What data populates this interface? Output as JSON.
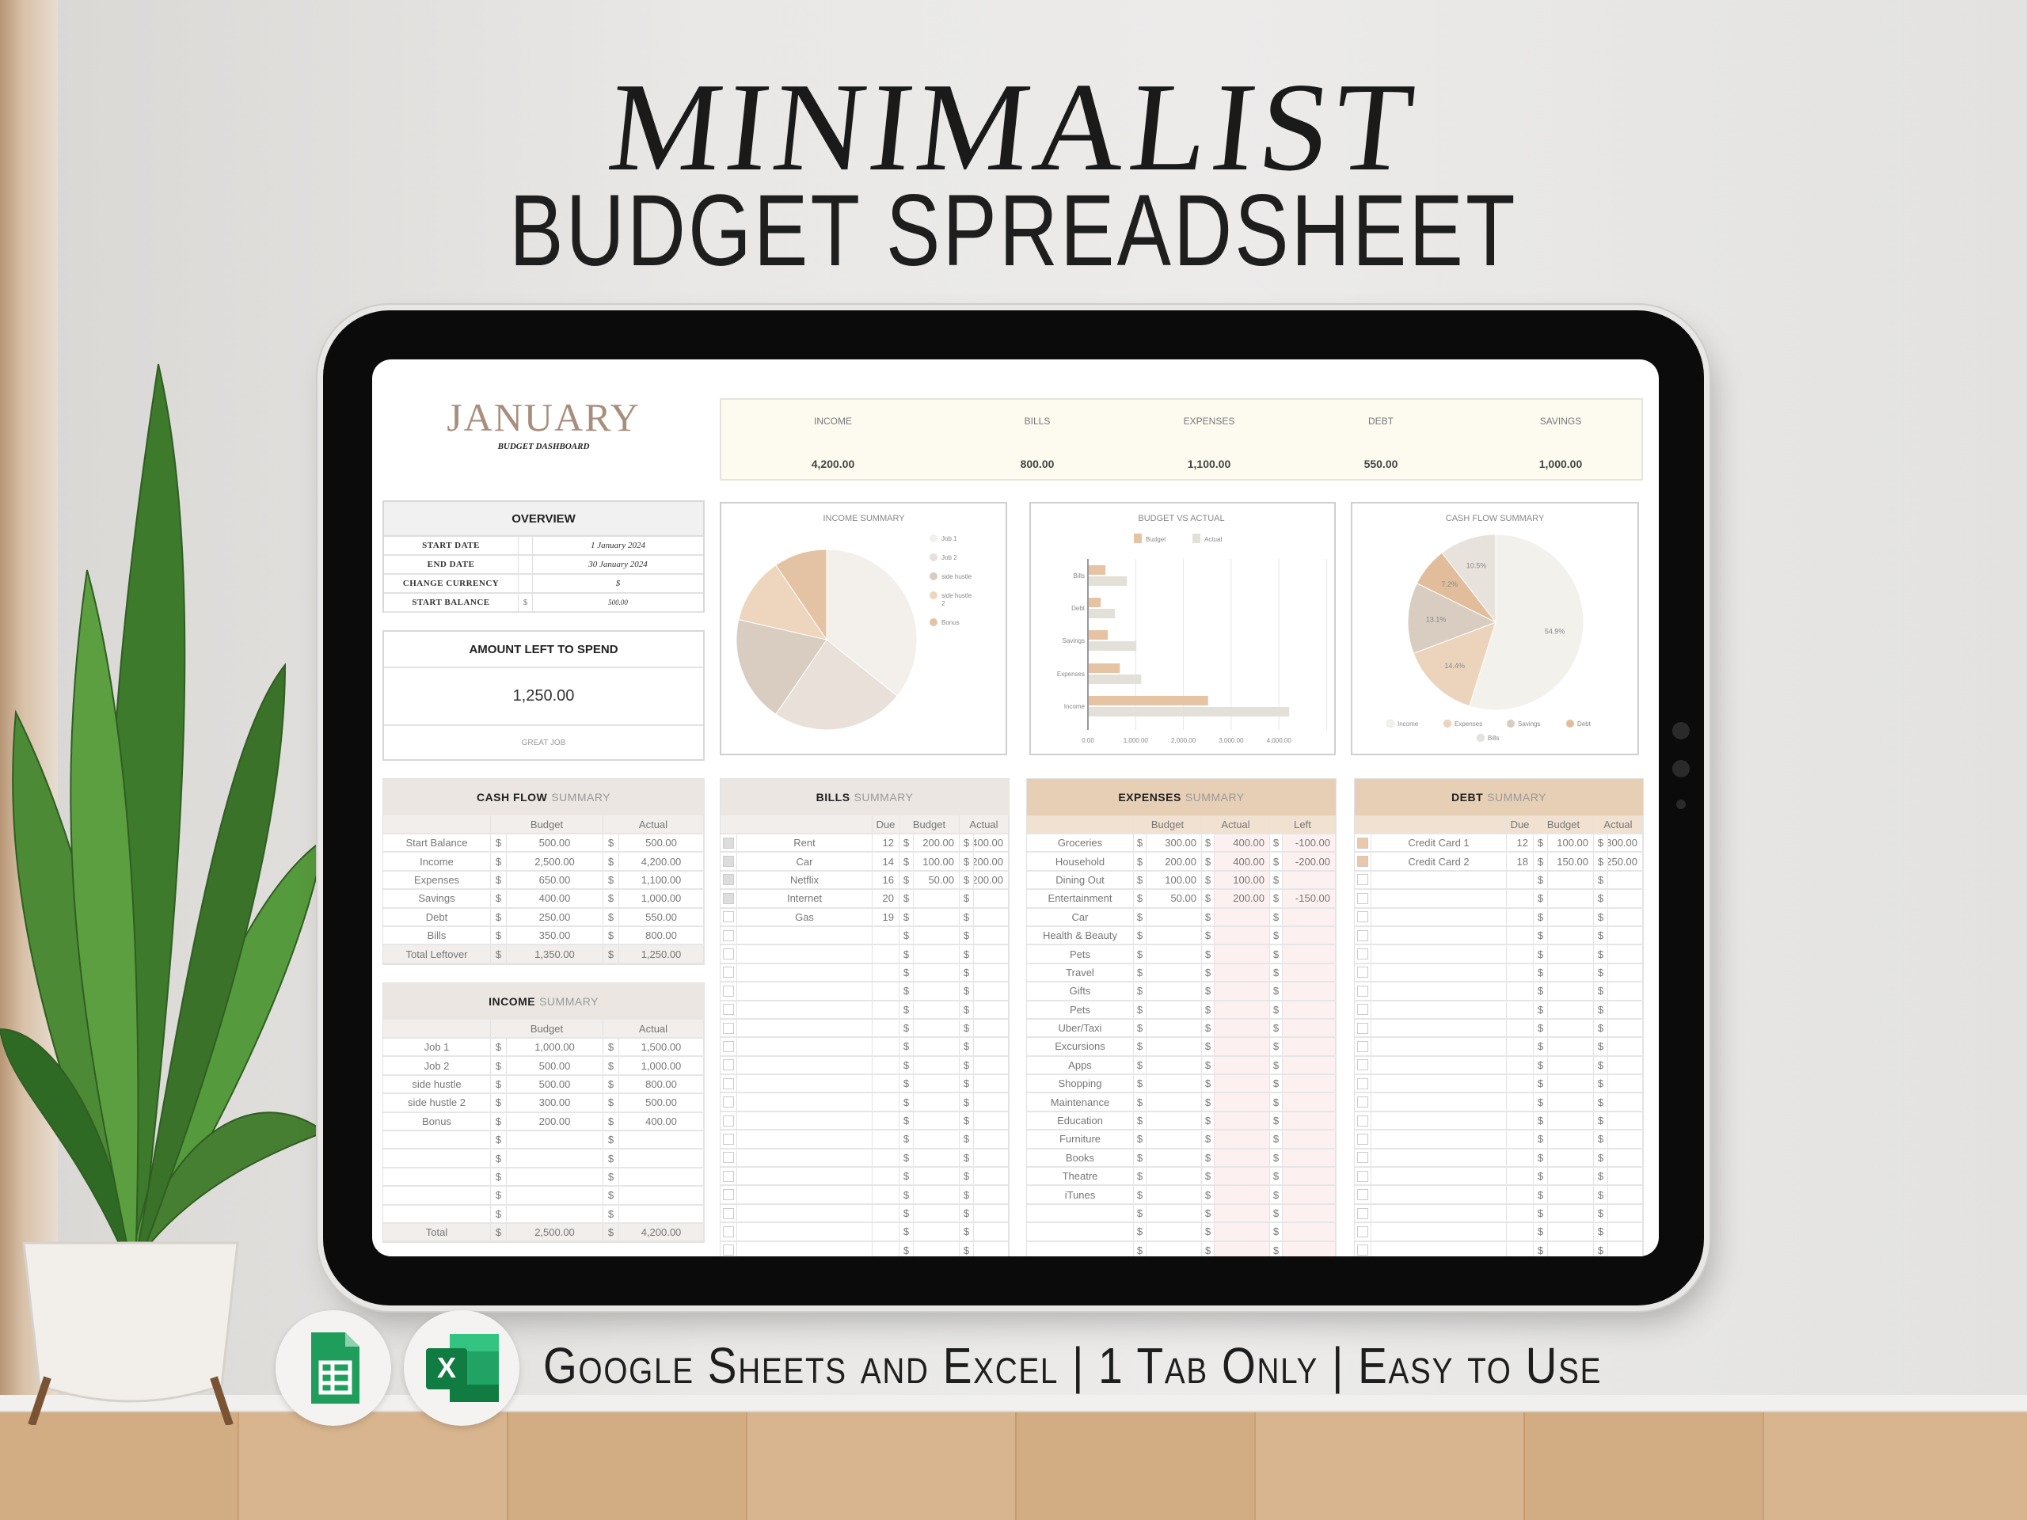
{
  "poster": {
    "title": "MINIMALIST",
    "subtitle": "BUDGET SPREADSHEET",
    "footer": "Google Sheets and Excel | 1 Tab Only | Easy to Use",
    "icons": [
      "google-sheets-icon",
      "excel-icon"
    ]
  },
  "colors": {
    "accent": "#a88e7d",
    "peach": "#e5c3a3",
    "kpi_bg": "#fdfbf0",
    "neutral_header": "#ebe6e1",
    "peach_header": "#e7cfb5",
    "pink_cell": "#fdf0f0"
  },
  "currency_symbol": "$",
  "header": {
    "month": "JANUARY",
    "subtitle": "BUDGET DASHBOARD"
  },
  "kpis": [
    {
      "label": "INCOME",
      "value": "4,200.00"
    },
    {
      "label": "BILLS",
      "value": "800.00"
    },
    {
      "label": "EXPENSES",
      "value": "1,100.00"
    },
    {
      "label": "DEBT",
      "value": "550.00"
    },
    {
      "label": "SAVINGS",
      "value": "1,000.00"
    }
  ],
  "overview": {
    "title": "OVERVIEW",
    "rows": [
      {
        "label": "START DATE",
        "value": "1 January 2024"
      },
      {
        "label": "END DATE",
        "value": "30 January 2024"
      },
      {
        "label": "CHANGE CURRENCY",
        "value": "$"
      },
      {
        "label": "START BALANCE",
        "prefix": "$",
        "value": "500.00"
      }
    ]
  },
  "amount_left": {
    "title": "AMOUNT LEFT TO SPEND",
    "value": "1,250.00",
    "message": "GREAT JOB"
  },
  "cash_flow": {
    "title_bold": "CASH FLOW",
    "title_rest": "SUMMARY",
    "columns": [
      "Budget",
      "Actual"
    ],
    "rows": [
      {
        "label": "Start Balance",
        "budget": "500.00",
        "actual": "500.00"
      },
      {
        "label": "Income",
        "budget": "2,500.00",
        "actual": "4,200.00"
      },
      {
        "label": "Expenses",
        "budget": "650.00",
        "actual": "1,100.00"
      },
      {
        "label": "Savings",
        "budget": "400.00",
        "actual": "1,000.00"
      },
      {
        "label": "Debt",
        "budget": "250.00",
        "actual": "550.00"
      },
      {
        "label": "Bills",
        "budget": "350.00",
        "actual": "800.00"
      }
    ],
    "total": {
      "label": "Total Leftover",
      "budget": "1,350.00",
      "actual": "1,250.00"
    }
  },
  "income": {
    "title_bold": "INCOME",
    "title_rest": "SUMMARY",
    "columns": [
      "Budget",
      "Actual"
    ],
    "rows": [
      {
        "label": "Job 1",
        "budget": "1,000.00",
        "actual": "1,500.00"
      },
      {
        "label": "Job 2",
        "budget": "500.00",
        "actual": "1,000.00"
      },
      {
        "label": "side hustle",
        "budget": "500.00",
        "actual": "800.00"
      },
      {
        "label": "side hustle 2",
        "budget": "300.00",
        "actual": "500.00"
      },
      {
        "label": "Bonus",
        "budget": "200.00",
        "actual": "400.00"
      },
      {
        "label": "",
        "budget": "",
        "actual": ""
      },
      {
        "label": "",
        "budget": "",
        "actual": ""
      },
      {
        "label": "",
        "budget": "",
        "actual": ""
      },
      {
        "label": "",
        "budget": "",
        "actual": ""
      },
      {
        "label": "",
        "budget": "",
        "actual": ""
      }
    ],
    "total": {
      "label": "Total",
      "budget": "2,500.00",
      "actual": "4,200.00"
    }
  },
  "bills": {
    "title_bold": "BILLS",
    "title_rest": "SUMMARY",
    "columns": [
      "Due",
      "Budget",
      "Actual"
    ],
    "rows": [
      {
        "paid": true,
        "name": "Rent",
        "due": "12",
        "budget": "200.00",
        "actual": "400.00"
      },
      {
        "paid": true,
        "name": "Car",
        "due": "14",
        "budget": "100.00",
        "actual": "200.00"
      },
      {
        "paid": true,
        "name": "Netflix",
        "due": "16",
        "budget": "50.00",
        "actual": "200.00"
      },
      {
        "paid": true,
        "name": "Internet",
        "due": "20",
        "budget": "",
        "actual": ""
      },
      {
        "paid": false,
        "name": "Gas",
        "due": "19",
        "budget": "",
        "actual": ""
      }
    ]
  },
  "expenses": {
    "title_bold": "EXPENSES",
    "title_rest": "SUMMARY",
    "columns": [
      "Budget",
      "Actual",
      "Left"
    ],
    "rows": [
      {
        "name": "Groceries",
        "budget": "300.00",
        "actual": "400.00",
        "left": "-100.00"
      },
      {
        "name": "Household",
        "budget": "200.00",
        "actual": "400.00",
        "left": "-200.00"
      },
      {
        "name": "Dining Out",
        "budget": "100.00",
        "actual": "100.00",
        "left": ""
      },
      {
        "name": "Entertainment",
        "budget": "50.00",
        "actual": "200.00",
        "left": "-150.00"
      },
      {
        "name": "Car"
      },
      {
        "name": "Health & Beauty"
      },
      {
        "name": "Pets"
      },
      {
        "name": "Travel"
      },
      {
        "name": "Gifts"
      },
      {
        "name": "Pets"
      },
      {
        "name": "Uber/Taxi"
      },
      {
        "name": "Excursions"
      },
      {
        "name": "Apps"
      },
      {
        "name": "Shopping"
      },
      {
        "name": "Maintenance"
      },
      {
        "name": "Education"
      },
      {
        "name": "Furniture"
      },
      {
        "name": "Books"
      },
      {
        "name": "Theatre"
      },
      {
        "name": "iTunes"
      }
    ]
  },
  "debt": {
    "title_bold": "DEBT",
    "title_rest": "SUMMARY",
    "columns": [
      "Due",
      "Budget",
      "Actual"
    ],
    "rows": [
      {
        "paid": true,
        "name": "Credit Card 1",
        "due": "12",
        "budget": "100.00",
        "actual": "300.00"
      },
      {
        "paid": true,
        "name": "Credit Card 2",
        "due": "18",
        "budget": "150.00",
        "actual": "250.00"
      }
    ]
  },
  "chart_data": [
    {
      "type": "pie",
      "title": "INCOME SUMMARY",
      "categories": [
        "Job 1",
        "Job 2",
        "side hustle",
        "side hustle 2",
        "Bonus"
      ],
      "values": [
        1500,
        1000,
        800,
        500,
        400
      ],
      "colors": [
        "#f3f0ec",
        "#e9e0d9",
        "#d9ccc0",
        "#eed6be",
        "#e3c3a3"
      ],
      "legend": "right"
    },
    {
      "type": "bar",
      "orientation": "horizontal",
      "title": "BUDGET VS ACTUAL",
      "categories": [
        "Bills",
        "Debt",
        "Savings",
        "Expenses",
        "Income"
      ],
      "series": [
        {
          "name": "Budget",
          "values": [
            350,
            250,
            400,
            650,
            2500
          ],
          "color": "#e5c3a3"
        },
        {
          "name": "Actual",
          "values": [
            800,
            550,
            1000,
            1100,
            4200
          ],
          "color": "#e3e0d8"
        }
      ],
      "xlim": [
        0,
        5000
      ],
      "xticks": [
        "0.00",
        "1,000.00",
        "2,000.00",
        "3,000.00",
        "4,000.00"
      ],
      "grid": true,
      "legend": "top"
    },
    {
      "type": "pie",
      "title": "CASH FLOW SUMMARY",
      "categories": [
        "Income",
        "Expenses",
        "Savings",
        "Debt",
        "Bills"
      ],
      "values": [
        54.9,
        14.4,
        13.1,
        7.2,
        10.5
      ],
      "labels": [
        "54.9%",
        "14.4%",
        "13.1%",
        "7.2%",
        "10.5%"
      ],
      "colors": [
        "#f3f1ec",
        "#ecd4bc",
        "#d9ccc0",
        "#e2bd9b",
        "#e8e2dc"
      ],
      "legend": "bottom"
    }
  ]
}
